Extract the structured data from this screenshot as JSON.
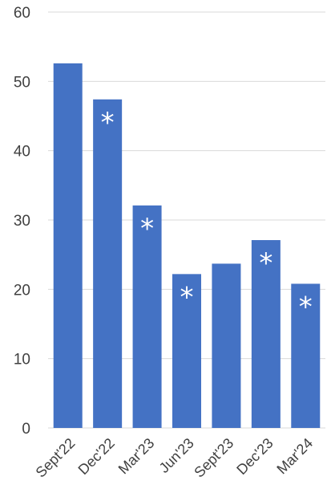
{
  "chart_data": {
    "type": "bar",
    "categories": [
      "Sept'22",
      "Dec'22",
      "Mar'23",
      "Jun'23",
      "Sept'23",
      "Dec'23",
      "Mar'24"
    ],
    "values": [
      52.6,
      47.4,
      32.1,
      22.2,
      23.7,
      27.1,
      20.8
    ],
    "annotations": [
      "",
      "*",
      "*",
      "*",
      "",
      "*",
      "*"
    ],
    "ylim": [
      0,
      60
    ],
    "yticks": [
      0,
      10,
      20,
      30,
      40,
      50,
      60
    ],
    "grid": true,
    "legend": "none",
    "bar_color": "#4472c4",
    "grid_color": "#d9d9d9",
    "label_color": "#404040"
  }
}
